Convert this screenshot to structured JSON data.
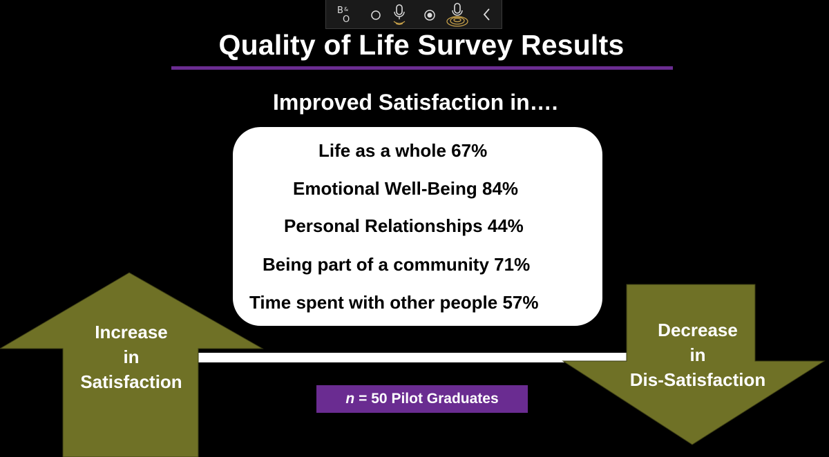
{
  "toolbar": {
    "logo_text": "B&O",
    "icons": [
      "bo-logo-icon",
      "circle-icon",
      "microphone-icon",
      "record-dot-icon",
      "microphone-broadcast-icon",
      "chevron-left-icon"
    ]
  },
  "slide": {
    "title": "Quality of Life Survey Results",
    "subtitle": "Improved Satisfaction in….",
    "items": [
      "Life as a whole 67%",
      "Emotional Well-Being 84%",
      "Personal Relationships 44%",
      "Being part of a community 71%",
      "Time spent with other people 57%"
    ],
    "left_arrow": {
      "line1": "Increase",
      "line2": "in",
      "line3": "Satisfaction"
    },
    "right_arrow": {
      "line1": "Decrease",
      "line2": "in",
      "line3": "Dis-Satisfaction"
    },
    "sample": {
      "n": "n",
      "text": "= 50 Pilot Graduates"
    }
  },
  "colors": {
    "accent_purple": "#6a2c91",
    "arrow_olive": "#6f7126",
    "background": "#000000",
    "card": "#ffffff"
  }
}
